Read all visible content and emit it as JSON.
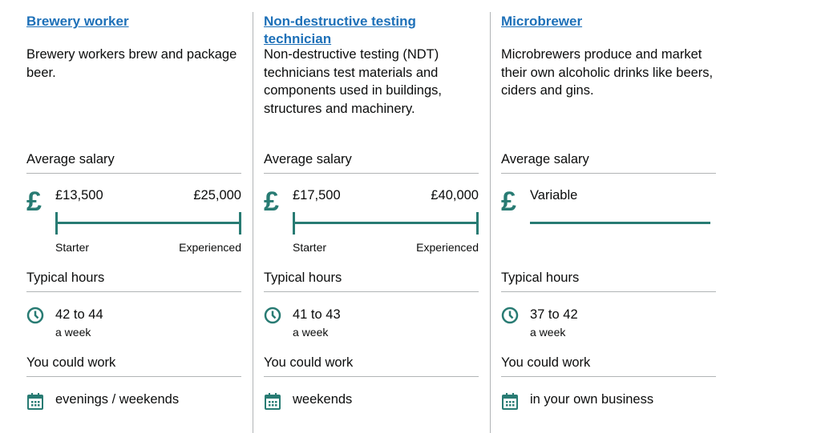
{
  "cards": [
    {
      "title": "Brewery worker",
      "description": "Brewery workers brew and package beer.",
      "salary_heading": "Average salary",
      "salary_starter": "£13,500",
      "salary_experienced": "£25,000",
      "starter_label": "Starter",
      "experienced_label": "Experienced",
      "hours_heading": "Typical hours",
      "hours": "42 to 44",
      "hours_unit": "a week",
      "work_heading": "You could work",
      "work": "evenings / weekends"
    },
    {
      "title": "Non-destructive testing technician",
      "description": "Non-destructive testing (NDT) technicians test materials and components used in buildings, structures and machinery.",
      "salary_heading": "Average salary",
      "salary_starter": "£17,500",
      "salary_experienced": "£40,000",
      "starter_label": "Starter",
      "experienced_label": "Experienced",
      "hours_heading": "Typical hours",
      "hours": "41 to 43",
      "hours_unit": "a week",
      "work_heading": "You could work",
      "work": "weekends"
    },
    {
      "title": "Microbrewer",
      "description": "Microbrewers produce and market their own alcoholic drinks like beers, ciders and gins.",
      "salary_heading": "Average salary",
      "salary_variable": "Variable",
      "hours_heading": "Typical hours",
      "hours": "37 to 42",
      "hours_unit": "a week",
      "work_heading": "You could work",
      "work": "in your own business"
    }
  ]
}
